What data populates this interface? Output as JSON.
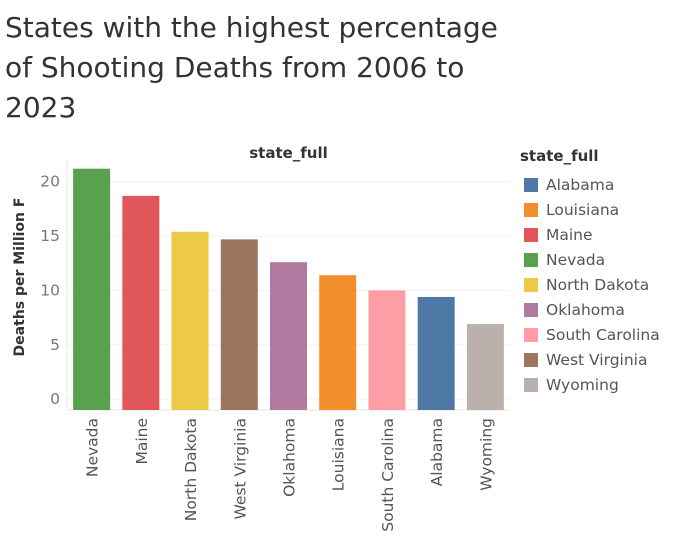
{
  "title": "States with the highest percentage of Shooting Deaths from 2006 to 2023",
  "chart_data": {
    "type": "bar",
    "header": "state_full",
    "ylabel": "Deaths per Million F",
    "ylim": [
      -1,
      22
    ],
    "yticks": [
      0,
      5,
      10,
      15,
      20
    ],
    "grid": true,
    "categories": [
      "Nevada",
      "Maine",
      "North Dakota",
      "West Virginia",
      "Oklahoma",
      "Louisiana",
      "South Carolina",
      "Alabama",
      "Wyoming"
    ],
    "values": [
      21.2,
      18.7,
      15.4,
      14.7,
      12.6,
      11.4,
      10.0,
      9.4,
      6.9
    ],
    "colors": [
      "#59a14f",
      "#e15759",
      "#edc948",
      "#9c755f",
      "#b07aa1",
      "#f28e2b",
      "#ff9da7",
      "#4e79a7",
      "#bab0ac"
    ],
    "legend": {
      "title": "state_full",
      "placement": "right",
      "items": [
        {
          "label": "Alabama",
          "color": "#4e79a7"
        },
        {
          "label": "Louisiana",
          "color": "#f28e2b"
        },
        {
          "label": "Maine",
          "color": "#e15759"
        },
        {
          "label": "Nevada",
          "color": "#59a14f"
        },
        {
          "label": "North Dakota",
          "color": "#edc948"
        },
        {
          "label": "Oklahoma",
          "color": "#b07aa1"
        },
        {
          "label": "South Carolina",
          "color": "#ff9da7"
        },
        {
          "label": "West Virginia",
          "color": "#9c755f"
        },
        {
          "label": "Wyoming",
          "color": "#bab0ac"
        }
      ]
    }
  }
}
